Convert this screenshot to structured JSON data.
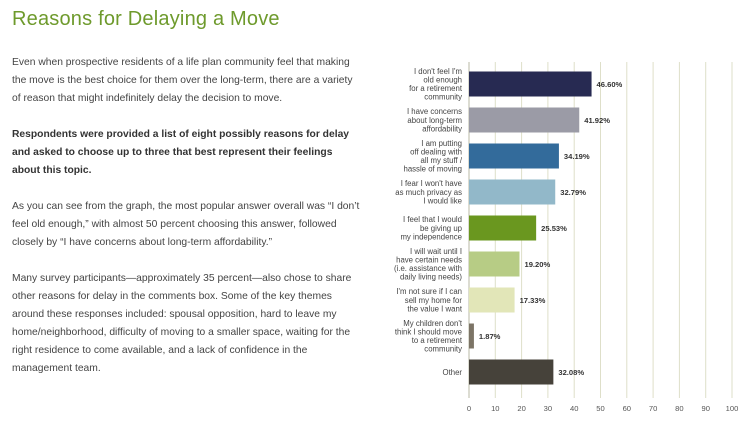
{
  "page": {
    "title": "Reasons for Delaying a Move",
    "paragraphs": [
      "Even when prospective residents of a life plan community feel that making the move is the best choice for them over the long-term, there are a variety of reason that might indefinitely delay the decision to move.",
      "Respondents were provided a list of eight possibly reasons for delay and asked to choose up to three that best represent their feelings about this topic.",
      "As you can see from the graph, the most popular answer overall was “I don’t feel old enough,” with almost 50 percent choosing this answer, followed closely by “I have concerns about long-term affordability.”",
      "Many survey participants—approximately 35 percent—also chose to share other reasons for delay in the comments box. Some of the key themes around these responses included: spousal opposition, hard to leave my home/neighborhood, difficulty of moving to a smaller space, waiting for the right residence to come available, and a lack of confidence in the management team."
    ]
  },
  "chart_data": {
    "type": "bar",
    "orientation": "horizontal",
    "categories": [
      [
        "I don't feel I'm",
        "old enough",
        "for a retirement",
        "community"
      ],
      [
        "I have concerns",
        "about long-term",
        "affordability"
      ],
      [
        "I am putting",
        "off dealing with",
        "all my stuff /",
        "hassle of moving"
      ],
      [
        "I fear I won't have",
        "as much privacy as",
        "I would like"
      ],
      [
        "I feel that I would",
        "be giving up",
        "my independence"
      ],
      [
        "I will wait until I",
        "have certain needs",
        "(i.e. assistance with",
        "daily living needs)"
      ],
      [
        "I'm not sure if I can",
        "sell my home for",
        "the value I want"
      ],
      [
        "My children don't",
        "think I should move",
        "to a retirement",
        "community"
      ],
      [
        "Other"
      ]
    ],
    "values": [
      46.6,
      41.92,
      34.19,
      32.79,
      25.53,
      19.2,
      17.33,
      1.87,
      32.08
    ],
    "value_labels": [
      "46.60%",
      "41.92%",
      "34.19%",
      "32.79%",
      "25.53%",
      "19.20%",
      "17.33%",
      "1.87%",
      "32.08%"
    ],
    "colors": [
      "#272a52",
      "#9b9ba6",
      "#336b9b",
      "#92b8c9",
      "#6a971f",
      "#b7cc85",
      "#e2e6b8",
      "#7c7466",
      "#46423a"
    ],
    "xlim": [
      0,
      100
    ],
    "xticks": [
      "0",
      "10",
      "20",
      "30",
      "40",
      "50",
      "60",
      "70",
      "80",
      "90",
      "100"
    ],
    "grid": true,
    "title": "",
    "xlabel": "",
    "ylabel": ""
  }
}
